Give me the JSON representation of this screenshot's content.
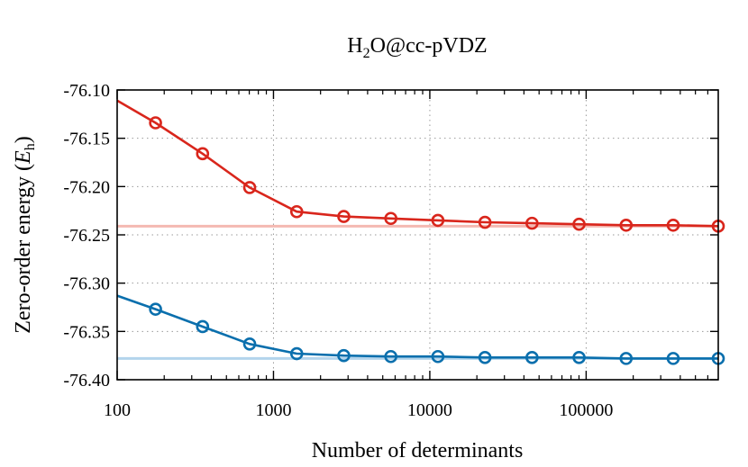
{
  "chart_data": {
    "type": "line",
    "title_main": "H",
    "title_sub": "2",
    "title_rest": "O@cc-pVDZ",
    "xlabel": "Number of determinants",
    "ylabel_main": "Zero-order energy (",
    "ylabel_var": "E",
    "ylabel_sub": "h",
    "ylabel_close": ")",
    "x_scale": "log",
    "xlim": [
      100,
      700000
    ],
    "ylim": [
      -76.4,
      -76.1
    ],
    "x_ticks": [
      100,
      1000,
      10000,
      100000
    ],
    "x_tick_labels": [
      "100",
      "1000",
      "10000",
      "100000"
    ],
    "y_ticks": [
      -76.1,
      -76.15,
      -76.2,
      -76.25,
      -76.3,
      -76.35,
      -76.4
    ],
    "y_tick_labels": [
      "-76.10",
      "-76.15",
      "-76.20",
      "-76.25",
      "-76.30",
      "-76.35",
      "-76.40"
    ],
    "grid": "dotted",
    "series": [
      {
        "color": "#d9261c",
        "line_start": [
          100,
          -76.111
        ],
        "x": [
          176,
          352,
          704,
          1408,
          2816,
          5632,
          11264,
          22528,
          45056,
          90112,
          180224,
          360448,
          720896
        ],
        "values": [
          -76.134,
          -76.166,
          -76.201,
          -76.226,
          -76.231,
          -76.233,
          -76.235,
          -76.237,
          -76.238,
          -76.239,
          -76.24,
          -76.24,
          -76.241
        ]
      },
      {
        "color": "#0a6fad",
        "line_start": [
          100,
          -76.313
        ],
        "x": [
          176,
          352,
          704,
          1408,
          2816,
          5632,
          11264,
          22528,
          45056,
          90112,
          180224,
          360448,
          720896
        ],
        "values": [
          -76.327,
          -76.345,
          -76.363,
          -76.373,
          -76.375,
          -76.376,
          -76.376,
          -76.377,
          -76.377,
          -76.377,
          -76.378,
          -76.378,
          -76.378
        ]
      }
    ],
    "reference_lines": [
      {
        "y": -76.241,
        "color": "#f4b9b2"
      },
      {
        "y": -76.378,
        "color": "#b3d4ec"
      }
    ]
  }
}
